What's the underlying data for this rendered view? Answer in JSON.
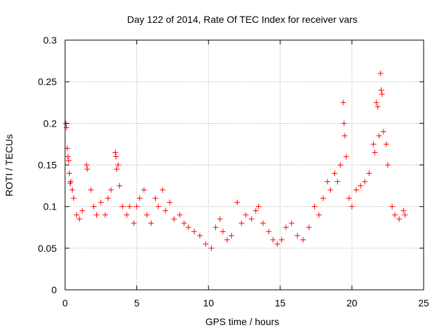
{
  "chart_data": {
    "type": "scatter",
    "title": "Day 122 of 2014, Rate Of TEC Index for receiver vars",
    "xlabel": "GPS time / hours",
    "ylabel": "ROTI / TECUs",
    "xlim": [
      0,
      25
    ],
    "ylim": [
      0,
      0.3
    ],
    "x_ticks": [
      0,
      5,
      10,
      15,
      20,
      25
    ],
    "x_tick_labels": [
      "0",
      "5",
      "10",
      "15",
      "20",
      "25"
    ],
    "y_ticks": [
      0,
      0.05,
      0.1,
      0.15,
      0.2,
      0.25,
      0.3
    ],
    "y_tick_labels": [
      "0",
      "0.05",
      "0.1",
      "0.15",
      "0.2",
      "0.25",
      "0.3"
    ],
    "grid": true,
    "marker": "+",
    "marker_color": "#ff0000",
    "series": [
      {
        "name": "ROTI",
        "points": [
          [
            0.05,
            0.2
          ],
          [
            0.1,
            0.195
          ],
          [
            0.15,
            0.17
          ],
          [
            0.2,
            0.16
          ],
          [
            0.25,
            0.155
          ],
          [
            0.3,
            0.14
          ],
          [
            0.35,
            0.128
          ],
          [
            0.4,
            0.13
          ],
          [
            0.5,
            0.12
          ],
          [
            0.6,
            0.11
          ],
          [
            0.8,
            0.09
          ],
          [
            1.0,
            0.085
          ],
          [
            1.2,
            0.095
          ],
          [
            1.5,
            0.15
          ],
          [
            1.55,
            0.145
          ],
          [
            1.8,
            0.12
          ],
          [
            2.0,
            0.1
          ],
          [
            2.2,
            0.09
          ],
          [
            2.5,
            0.105
          ],
          [
            2.8,
            0.09
          ],
          [
            3.0,
            0.11
          ],
          [
            3.2,
            0.12
          ],
          [
            3.5,
            0.165
          ],
          [
            3.55,
            0.16
          ],
          [
            3.6,
            0.145
          ],
          [
            3.7,
            0.15
          ],
          [
            3.8,
            0.125
          ],
          [
            4.0,
            0.1
          ],
          [
            4.3,
            0.09
          ],
          [
            4.5,
            0.1
          ],
          [
            4.8,
            0.08
          ],
          [
            5.0,
            0.1
          ],
          [
            5.2,
            0.11
          ],
          [
            5.5,
            0.12
          ],
          [
            5.7,
            0.09
          ],
          [
            6.0,
            0.08
          ],
          [
            6.3,
            0.11
          ],
          [
            6.5,
            0.1
          ],
          [
            6.8,
            0.12
          ],
          [
            7.0,
            0.095
          ],
          [
            7.3,
            0.105
          ],
          [
            7.6,
            0.085
          ],
          [
            8.0,
            0.09
          ],
          [
            8.3,
            0.08
          ],
          [
            8.6,
            0.075
          ],
          [
            9.0,
            0.07
          ],
          [
            9.4,
            0.065
          ],
          [
            9.8,
            0.055
          ],
          [
            10.2,
            0.05
          ],
          [
            10.5,
            0.075
          ],
          [
            10.8,
            0.085
          ],
          [
            11.0,
            0.07
          ],
          [
            11.3,
            0.06
          ],
          [
            11.6,
            0.065
          ],
          [
            12.0,
            0.105
          ],
          [
            12.3,
            0.08
          ],
          [
            12.6,
            0.09
          ],
          [
            13.0,
            0.085
          ],
          [
            13.3,
            0.095
          ],
          [
            13.5,
            0.1
          ],
          [
            13.8,
            0.08
          ],
          [
            14.2,
            0.07
          ],
          [
            14.5,
            0.06
          ],
          [
            14.8,
            0.055
          ],
          [
            15.1,
            0.06
          ],
          [
            15.4,
            0.075
          ],
          [
            15.8,
            0.08
          ],
          [
            16.2,
            0.065
          ],
          [
            16.6,
            0.06
          ],
          [
            17.0,
            0.075
          ],
          [
            17.4,
            0.1
          ],
          [
            17.7,
            0.09
          ],
          [
            18.0,
            0.11
          ],
          [
            18.3,
            0.13
          ],
          [
            18.5,
            0.12
          ],
          [
            18.8,
            0.14
          ],
          [
            19.0,
            0.13
          ],
          [
            19.2,
            0.15
          ],
          [
            19.4,
            0.225
          ],
          [
            19.45,
            0.2
          ],
          [
            19.5,
            0.185
          ],
          [
            19.6,
            0.16
          ],
          [
            19.8,
            0.11
          ],
          [
            20.0,
            0.1
          ],
          [
            20.3,
            0.12
          ],
          [
            20.6,
            0.125
          ],
          [
            20.9,
            0.13
          ],
          [
            21.2,
            0.14
          ],
          [
            21.5,
            0.175
          ],
          [
            21.6,
            0.165
          ],
          [
            21.7,
            0.225
          ],
          [
            21.8,
            0.22
          ],
          [
            21.9,
            0.185
          ],
          [
            22.0,
            0.26
          ],
          [
            22.05,
            0.24
          ],
          [
            22.1,
            0.235
          ],
          [
            22.2,
            0.19
          ],
          [
            22.4,
            0.175
          ],
          [
            22.5,
            0.15
          ],
          [
            22.8,
            0.1
          ],
          [
            23.0,
            0.09
          ],
          [
            23.3,
            0.085
          ],
          [
            23.6,
            0.095
          ],
          [
            23.7,
            0.09
          ]
        ]
      }
    ]
  }
}
